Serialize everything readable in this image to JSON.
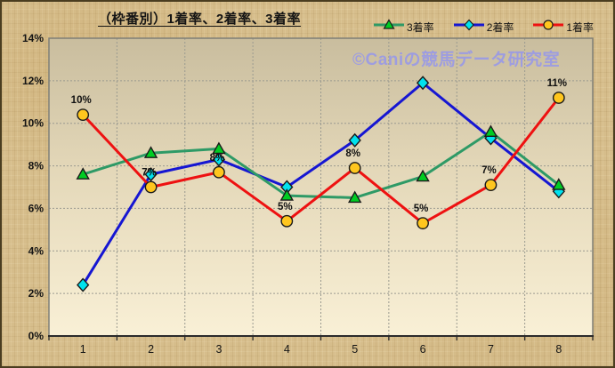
{
  "window": {
    "watermark": "©Caniの競馬データ研究室"
  },
  "colors": {
    "background_tan": "#d6bd8b",
    "plot_gradient_top": "#c9bd9e",
    "plot_gradient_bottom": "#f9f0d6",
    "gridline": "#9a9a90",
    "axis": "#2b2b2b",
    "title_text": "#141414",
    "watermark_text": "#9a9ae6",
    "series_rate3_line": "#2e9a66",
    "series_rate3_marker": "#00cc22",
    "series_rate2_line": "#1616d2",
    "series_rate2_marker": "#00e2ee",
    "series_rate1_line": "#ee1111",
    "series_rate1_marker": "#ffc61e"
  },
  "chart_data": {
    "type": "line",
    "title": "（枠番別）1着率、2着率、3着率",
    "categories": [
      "1",
      "2",
      "3",
      "4",
      "5",
      "6",
      "7",
      "8"
    ],
    "y_ticks": [
      "0%",
      "2%",
      "4%",
      "6%",
      "8%",
      "10%",
      "12%",
      "14%"
    ],
    "ylim": [
      0,
      14
    ],
    "y_tick_step": 2,
    "grid": "dashed horizontal and vertical gridlines",
    "legend_position": "top-right",
    "xlabel": "",
    "ylabel": "",
    "series": [
      {
        "name": "3着率",
        "marker": "triangle",
        "line_color": "#2e9a66",
        "marker_fill": "#00cc22",
        "values": [
          7.6,
          8.6,
          8.8,
          6.6,
          6.5,
          7.5,
          9.6,
          7.1
        ]
      },
      {
        "name": "2着率",
        "marker": "diamond",
        "line_color": "#1616d2",
        "marker_fill": "#00e2ee",
        "values": [
          2.4,
          7.6,
          8.3,
          7.0,
          9.2,
          11.9,
          9.3,
          6.8
        ]
      },
      {
        "name": "1着率",
        "marker": "circle",
        "line_color": "#ee1111",
        "marker_fill": "#ffc61e",
        "values": [
          10.4,
          7.0,
          7.7,
          5.4,
          7.9,
          5.3,
          7.1,
          11.2
        ],
        "point_labels": [
          "10%",
          "7%",
          "8%",
          "5%",
          "8%",
          "5%",
          "7%",
          "11%"
        ]
      }
    ]
  }
}
